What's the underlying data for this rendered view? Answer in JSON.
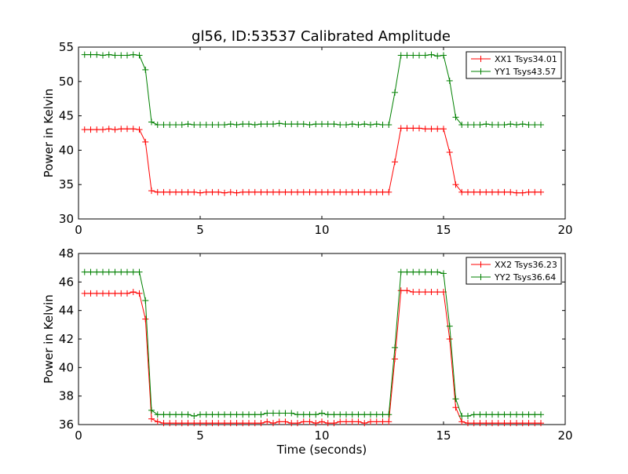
{
  "figure": {
    "title": "gl56, ID:53537 Calibrated Amplitude",
    "xlabel": "Time (seconds)"
  },
  "colors": {
    "red": "#ff0000",
    "green": "#008000"
  },
  "chart_data": [
    {
      "type": "line",
      "title": "gl56, ID:53537 Calibrated Amplitude",
      "xlabel": "",
      "ylabel": "Power in Kelvin",
      "xlim": [
        0,
        20
      ],
      "ylim": [
        30,
        55
      ],
      "xticks": [
        "0",
        "5",
        "10",
        "15",
        "20"
      ],
      "yticks": [
        "30",
        "35",
        "40",
        "45",
        "50",
        "55"
      ],
      "grid": false,
      "legend": "top-right",
      "x": [
        0.25,
        0.5,
        0.75,
        1.0,
        1.25,
        1.5,
        1.75,
        2.0,
        2.25,
        2.5,
        2.75,
        3.0,
        3.25,
        3.5,
        3.75,
        4.0,
        4.25,
        4.5,
        4.75,
        5.0,
        5.25,
        5.5,
        5.75,
        6.0,
        6.25,
        6.5,
        6.75,
        7.0,
        7.25,
        7.5,
        7.75,
        8.0,
        8.25,
        8.5,
        8.75,
        9.0,
        9.25,
        9.5,
        9.75,
        10.0,
        10.25,
        10.5,
        10.75,
        11.0,
        11.25,
        11.5,
        11.75,
        12.0,
        12.25,
        12.5,
        12.75,
        13.0,
        13.25,
        13.5,
        13.75,
        14.0,
        14.25,
        14.5,
        14.75,
        15.0,
        15.25,
        15.5,
        15.75,
        16.0,
        16.25,
        16.5,
        16.75,
        17.0,
        17.25,
        17.5,
        17.75,
        18.0,
        18.25,
        18.5,
        18.75,
        19.0
      ],
      "series": [
        {
          "name": "XX1 Tsys34.01",
          "color": "#ff0000",
          "values": [
            43.0,
            43.0,
            43.0,
            43.0,
            43.1,
            43.0,
            43.1,
            43.1,
            43.1,
            43.0,
            41.2,
            34.1,
            33.9,
            33.9,
            33.9,
            33.9,
            33.9,
            33.9,
            33.9,
            33.8,
            33.9,
            33.9,
            33.9,
            33.8,
            33.9,
            33.8,
            33.9,
            33.9,
            33.9,
            33.9,
            33.9,
            33.9,
            33.9,
            33.9,
            33.9,
            33.9,
            33.9,
            33.9,
            33.9,
            33.9,
            33.9,
            33.9,
            33.9,
            33.9,
            33.9,
            33.9,
            33.9,
            33.9,
            33.9,
            33.9,
            33.9,
            38.3,
            43.2,
            43.2,
            43.2,
            43.2,
            43.1,
            43.1,
            43.1,
            43.1,
            39.7,
            35.0,
            33.9,
            33.9,
            33.9,
            33.9,
            33.9,
            33.9,
            33.9,
            33.9,
            33.9,
            33.8,
            33.8,
            33.9,
            33.9,
            33.9
          ]
        },
        {
          "name": "YY1 Tsys43.57",
          "color": "#008000",
          "values": [
            53.9,
            53.9,
            53.9,
            53.8,
            53.9,
            53.8,
            53.8,
            53.8,
            53.9,
            53.8,
            51.7,
            44.1,
            43.7,
            43.7,
            43.7,
            43.7,
            43.7,
            43.8,
            43.7,
            43.7,
            43.7,
            43.7,
            43.7,
            43.7,
            43.8,
            43.7,
            43.8,
            43.8,
            43.7,
            43.8,
            43.8,
            43.8,
            43.9,
            43.8,
            43.8,
            43.8,
            43.8,
            43.7,
            43.8,
            43.8,
            43.8,
            43.8,
            43.7,
            43.7,
            43.8,
            43.7,
            43.8,
            43.7,
            43.8,
            43.7,
            43.7,
            48.4,
            53.8,
            53.8,
            53.8,
            53.8,
            53.8,
            53.9,
            53.7,
            53.8,
            50.1,
            44.8,
            43.7,
            43.7,
            43.7,
            43.7,
            43.8,
            43.7,
            43.7,
            43.7,
            43.8,
            43.7,
            43.8,
            43.7,
            43.7,
            43.7
          ]
        }
      ]
    },
    {
      "type": "line",
      "title": "",
      "xlabel": "Time (seconds)",
      "ylabel": "Power in Kelvin",
      "xlim": [
        0,
        20
      ],
      "ylim": [
        36,
        48
      ],
      "xticks": [
        "0",
        "5",
        "10",
        "15",
        "20"
      ],
      "yticks": [
        "36",
        "38",
        "40",
        "42",
        "44",
        "46",
        "48"
      ],
      "grid": false,
      "legend": "top-right",
      "x": [
        0.25,
        0.5,
        0.75,
        1.0,
        1.25,
        1.5,
        1.75,
        2.0,
        2.25,
        2.5,
        2.75,
        3.0,
        3.25,
        3.5,
        3.75,
        4.0,
        4.25,
        4.5,
        4.75,
        5.0,
        5.25,
        5.5,
        5.75,
        6.0,
        6.25,
        6.5,
        6.75,
        7.0,
        7.25,
        7.5,
        7.75,
        8.0,
        8.25,
        8.5,
        8.75,
        9.0,
        9.25,
        9.5,
        9.75,
        10.0,
        10.25,
        10.5,
        10.75,
        11.0,
        11.25,
        11.5,
        11.75,
        12.0,
        12.25,
        12.5,
        12.75,
        13.0,
        13.25,
        13.5,
        13.75,
        14.0,
        14.25,
        14.5,
        14.75,
        15.0,
        15.25,
        15.5,
        15.75,
        16.0,
        16.25,
        16.5,
        16.75,
        17.0,
        17.25,
        17.5,
        17.75,
        18.0,
        18.25,
        18.5,
        18.75,
        19.0
      ],
      "series": [
        {
          "name": "XX2 Tsys36.23",
          "color": "#ff0000",
          "values": [
            45.2,
            45.2,
            45.2,
            45.2,
            45.2,
            45.2,
            45.2,
            45.2,
            45.3,
            45.2,
            43.4,
            36.4,
            36.2,
            36.1,
            36.1,
            36.1,
            36.1,
            36.1,
            36.1,
            36.1,
            36.1,
            36.1,
            36.1,
            36.1,
            36.1,
            36.1,
            36.1,
            36.1,
            36.1,
            36.1,
            36.2,
            36.1,
            36.2,
            36.2,
            36.1,
            36.1,
            36.2,
            36.2,
            36.1,
            36.2,
            36.1,
            36.1,
            36.2,
            36.2,
            36.2,
            36.2,
            36.1,
            36.2,
            36.2,
            36.2,
            36.2,
            40.6,
            45.4,
            45.4,
            45.3,
            45.3,
            45.3,
            45.3,
            45.3,
            45.3,
            42.0,
            37.2,
            36.2,
            36.1,
            36.1,
            36.1,
            36.1,
            36.1,
            36.1,
            36.1,
            36.1,
            36.1,
            36.1,
            36.1,
            36.1,
            36.1
          ]
        },
        {
          "name": "YY2 Tsys36.64",
          "color": "#008000",
          "values": [
            46.7,
            46.7,
            46.7,
            46.7,
            46.7,
            46.7,
            46.7,
            46.7,
            46.7,
            46.7,
            44.7,
            37.0,
            36.7,
            36.7,
            36.7,
            36.7,
            36.7,
            36.7,
            36.6,
            36.7,
            36.7,
            36.7,
            36.7,
            36.7,
            36.7,
            36.7,
            36.7,
            36.7,
            36.7,
            36.7,
            36.8,
            36.8,
            36.8,
            36.8,
            36.8,
            36.7,
            36.7,
            36.7,
            36.7,
            36.8,
            36.7,
            36.7,
            36.7,
            36.7,
            36.7,
            36.7,
            36.7,
            36.7,
            36.7,
            36.7,
            36.7,
            41.4,
            46.7,
            46.7,
            46.7,
            46.7,
            46.7,
            46.7,
            46.7,
            46.6,
            42.9,
            37.8,
            36.6,
            36.6,
            36.7,
            36.7,
            36.7,
            36.7,
            36.7,
            36.7,
            36.7,
            36.7,
            36.7,
            36.7,
            36.7,
            36.7
          ]
        }
      ]
    }
  ]
}
